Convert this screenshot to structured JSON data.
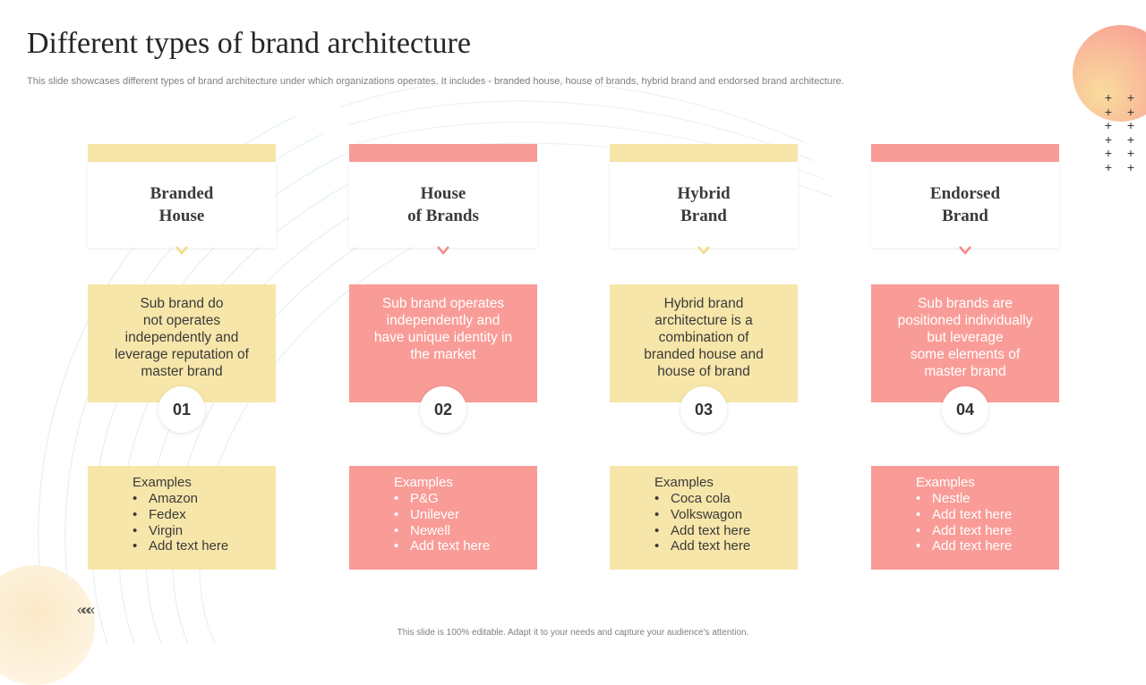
{
  "title": "Different types of brand architecture",
  "subtitle": "This slide showcases different types of brand architecture under which organizations operates. It includes - branded house, house of brands, hybrid brand and endorsed brand architecture.",
  "colors": {
    "yellow": "#f7e6a9",
    "pink": "#f99c97",
    "arrow_yellow": "#f3da83",
    "arrow_pink": "#f58a86"
  },
  "decor": {
    "plus_icon": "+",
    "chevrons_icon": "«««"
  },
  "cards": [
    {
      "heading": "Branded\nHouse",
      "description": "Sub brand do\nnot operates\nindependently and\nleverage reputation of\nmaster brand",
      "number": "01",
      "examples_title": "Examples",
      "examples": [
        "Amazon",
        "Fedex",
        "Virgin",
        "Add text here"
      ]
    },
    {
      "heading": "House\nof Brands",
      "description": "Sub brand operates\nindependently  and\nhave unique identity in\nthe market",
      "number": "02",
      "examples_title": "Examples",
      "examples": [
        "P&G",
        "Unilever",
        "Newell",
        "Add text here"
      ]
    },
    {
      "heading": "Hybrid\nBrand",
      "description": "Hybrid brand\narchitecture is a\ncombination of\nbranded house and\nhouse of brand",
      "number": "03",
      "examples_title": "Examples",
      "examples": [
        "Coca cola",
        "Volkswagon",
        "Add text here",
        "Add text here"
      ]
    },
    {
      "heading": "Endorsed\nBrand",
      "description": "Sub brands are\npositioned individually\nbut leverage\nsome elements of\nmaster brand",
      "number": "04",
      "examples_title": "Examples",
      "examples": [
        "Nestle",
        "Add text here",
        "Add text here",
        "Add text here"
      ]
    }
  ],
  "footer": "This slide is 100% editable.  Adapt it to your needs and capture your audience's attention."
}
